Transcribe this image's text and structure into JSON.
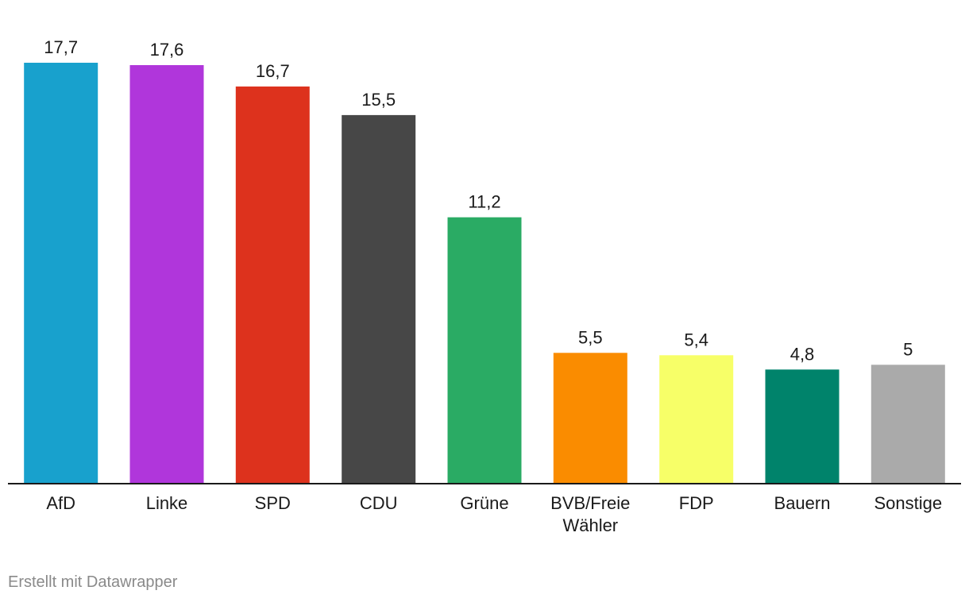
{
  "chart_data": {
    "type": "bar",
    "title": "",
    "xlabel": "",
    "ylabel": "",
    "ylim": [
      0,
      17.7
    ],
    "grid": false,
    "categories": [
      "AfD",
      "Linke",
      "SPD",
      "CDU",
      "Grüne",
      "BVB/Freie Wähler",
      "FDP",
      "Bauern",
      "Sonstige"
    ],
    "category_lines": [
      [
        "AfD"
      ],
      [
        "Linke"
      ],
      [
        "SPD"
      ],
      [
        "CDU"
      ],
      [
        "Grüne"
      ],
      [
        "BVB/Freie",
        "Wähler"
      ],
      [
        "FDP"
      ],
      [
        "Bauern"
      ],
      [
        "Sonstige"
      ]
    ],
    "values": [
      17.7,
      17.6,
      16.7,
      15.5,
      11.2,
      5.5,
      5.4,
      4.8,
      5
    ],
    "value_labels": [
      "17,7",
      "17,6",
      "16,7",
      "15,5",
      "11,2",
      "5,5",
      "5,4",
      "4,8",
      "5"
    ],
    "colors": [
      "#18a1cd",
      "#b036db",
      "#dd321d",
      "#474747",
      "#2aab64",
      "#fa8c00",
      "#f7ff68",
      "#00836b",
      "#aaaaaa"
    ]
  },
  "footer": {
    "credit": "Erstellt mit Datawrapper"
  }
}
